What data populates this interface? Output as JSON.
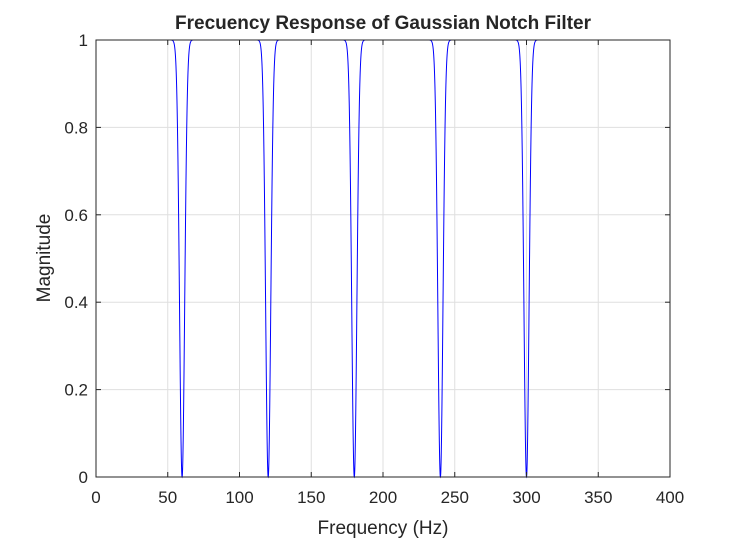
{
  "chart_data": {
    "type": "line",
    "title": "Frecuency Response of Gaussian Notch Filter",
    "xlabel": "Frequency (Hz)",
    "ylabel": "Magnitude",
    "xlim": [
      0,
      400
    ],
    "ylim": [
      0,
      1
    ],
    "xticks": [
      0,
      50,
      100,
      150,
      200,
      250,
      300,
      350,
      400
    ],
    "yticks": [
      0,
      0.2,
      0.4,
      0.6,
      0.8,
      1
    ],
    "xtick_labels": [
      "0",
      "50",
      "100",
      "150",
      "200",
      "250",
      "300",
      "350",
      "400"
    ],
    "ytick_labels": [
      "0",
      "0.2",
      "0.4",
      "0.6",
      "0.8",
      "1"
    ],
    "grid": true,
    "series": [
      {
        "color": "#0000ff",
        "description_points": "Magnitude is 1 everywhere except narrow notches dropping to 0 at the notch frequencies",
        "notch_frequencies": [
          60,
          120,
          180,
          240,
          300
        ],
        "notch_min": 0,
        "baseline": 1,
        "x_range": [
          0,
          400
        ]
      }
    ]
  }
}
